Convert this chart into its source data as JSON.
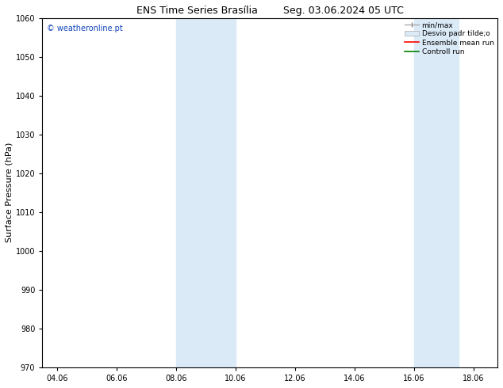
{
  "title_left": "ENS Time Series Brasília",
  "title_right": "Seg. 03.06.2024 05 UTC",
  "ylabel": "Surface Pressure (hPa)",
  "ylim": [
    970,
    1060
  ],
  "yticks": [
    970,
    980,
    990,
    1000,
    1010,
    1020,
    1030,
    1040,
    1050,
    1060
  ],
  "xlim_start": 3.5,
  "xlim_end": 18.8,
  "xtick_labels": [
    "04.06",
    "06.06",
    "08.06",
    "10.06",
    "12.06",
    "14.06",
    "16.06",
    "18.06"
  ],
  "xtick_positions": [
    4,
    6,
    8,
    10,
    12,
    14,
    16,
    18
  ],
  "shaded_regions": [
    {
      "x_start": 8.0,
      "x_end": 10.0
    },
    {
      "x_start": 16.0,
      "x_end": 17.5
    }
  ],
  "shaded_color": "#dbeaf7",
  "watermark_text": "© weatheronline.pt",
  "watermark_color": "#1144bb",
  "legend_labels": [
    "min/max",
    "Desvio padr tilde;o",
    "Ensemble mean run",
    "Controll run"
  ],
  "bg_color": "#ffffff",
  "title_fontsize": 9,
  "tick_fontsize": 7,
  "ylabel_fontsize": 8
}
